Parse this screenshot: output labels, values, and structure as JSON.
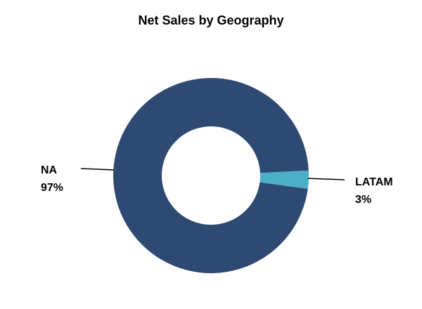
{
  "chart_data": {
    "type": "donut",
    "title": "Net Sales by Geography",
    "categories": [
      "NA",
      "LATAM"
    ],
    "values": [
      97,
      3
    ],
    "value_labels": [
      "97%",
      "3%"
    ],
    "colors": [
      "#2e4a73",
      "#4bafc8"
    ]
  }
}
